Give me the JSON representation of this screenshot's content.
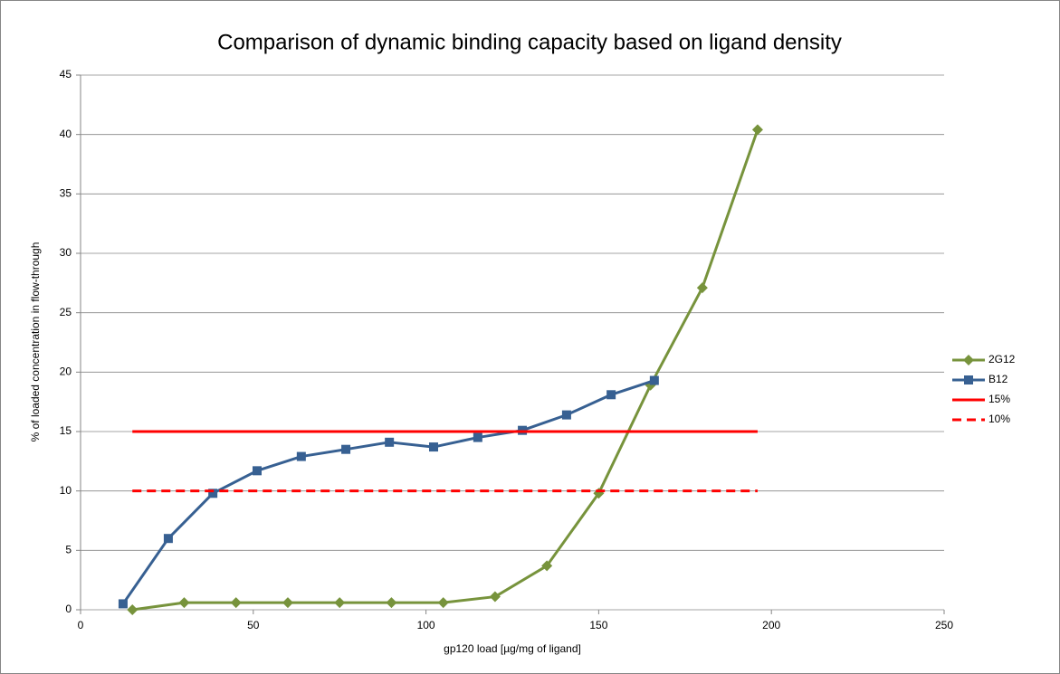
{
  "chart_data": {
    "type": "line",
    "title": "Comparison of dynamic binding capacity based on ligand density",
    "x_label": "gp120 load [µg/mg of ligand]",
    "y_label": "% of loaded concentration in flow-through",
    "xlim": [
      0,
      250
    ],
    "xticks": [
      0,
      50,
      100,
      150,
      200,
      250
    ],
    "ylim": [
      0,
      45
    ],
    "yticks": [
      0,
      5,
      10,
      15,
      20,
      25,
      30,
      35,
      40,
      45
    ],
    "grid": true,
    "legend": "right",
    "series": [
      {
        "name": "2G12",
        "color": "#77933c",
        "marker": "diamond",
        "dashed": false,
        "x": [
          15,
          30,
          45,
          60,
          75,
          90,
          105,
          120,
          135,
          150,
          165,
          180,
          196
        ],
        "values": [
          0,
          0.6,
          0.6,
          0.6,
          0.6,
          0.6,
          0.6,
          1.1,
          3.7,
          9.8,
          18.9,
          27.1,
          40.4
        ]
      },
      {
        "name": "B12",
        "color": "#376092",
        "marker": "square",
        "dashed": false,
        "x": [
          12.3,
          25.4,
          38.3,
          51.1,
          63.9,
          76.8,
          89.4,
          102.2,
          115,
          127.9,
          140.7,
          153.6,
          166.1
        ],
        "values": [
          0.5,
          6,
          9.8,
          11.7,
          12.9,
          13.5,
          14.1,
          13.7,
          14.5,
          15.1,
          16.4,
          18.1,
          19.3
        ]
      },
      {
        "name": "15%",
        "color": "#ff0000",
        "marker": null,
        "dashed": false,
        "x": [
          15,
          196
        ],
        "values": [
          15,
          15
        ]
      },
      {
        "name": "10%",
        "color": "#ff0000",
        "marker": null,
        "dashed": true,
        "x": [
          15,
          196
        ],
        "values": [
          10,
          10
        ]
      }
    ]
  }
}
